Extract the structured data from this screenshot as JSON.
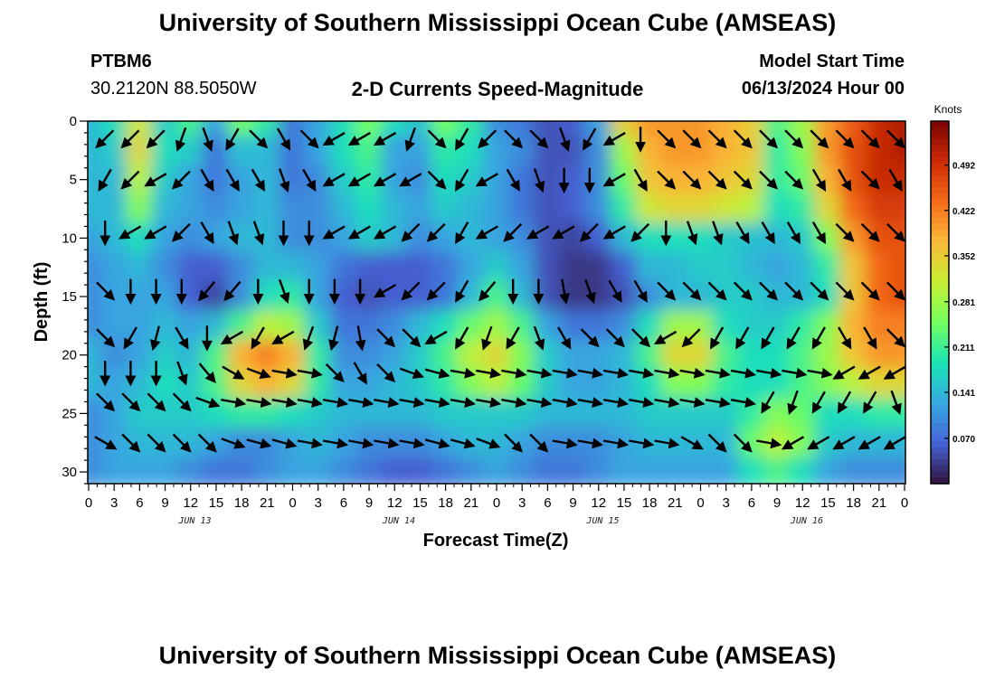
{
  "title": "University of Southern Mississippi Ocean Cube (AMSEAS)",
  "station": {
    "name": "PTBM6",
    "coords": "30.2120N  88.5050W"
  },
  "chart_title": "2-D Currents Speed-Magnitude",
  "model_start": {
    "label": "Model Start Time",
    "value": "06/13/2024 Hour 00"
  },
  "footer_title": "University of Southern Mississippi Ocean Cube (AMSEAS)",
  "chart_data": {
    "type": "heatmap",
    "title": "2-D Currents Speed-Magnitude",
    "xlabel": "Forecast Time(Z)",
    "ylabel": "Depth (ft)",
    "x_tick_labels": [
      "0",
      "3",
      "6",
      "9",
      "12",
      "15",
      "18",
      "21",
      "0",
      "3",
      "6",
      "9",
      "12",
      "15",
      "18",
      "21",
      "0",
      "3",
      "6",
      "9",
      "12",
      "15",
      "18",
      "21",
      "0",
      "3",
      "6",
      "9",
      "12",
      "15",
      "18",
      "21",
      "0"
    ],
    "day_labels": [
      "JUN 13",
      "JUN 14",
      "JUN 15",
      "JUN 16"
    ],
    "xlim_hours": [
      0,
      96
    ],
    "y_ticks": [
      0,
      5,
      10,
      15,
      20,
      25,
      30
    ],
    "ylim": [
      31,
      0
    ],
    "colorbar": {
      "unit": "Knots",
      "tick_labels": [
        "0.492",
        "0.422",
        "0.352",
        "0.281",
        "0.211",
        "0.141",
        "0.070"
      ],
      "tick_values": [
        0.492,
        0.422,
        0.352,
        0.281,
        0.211,
        0.141,
        0.07
      ],
      "range": [
        0.0,
        0.56
      ],
      "colormap": [
        "#30123b",
        "#4662d7",
        "#36a9e1",
        "#1ae4b6",
        "#72fe5e",
        "#c8ef34",
        "#faba39",
        "#f66b19",
        "#cb2a04",
        "#7a0403"
      ]
    },
    "depths": [
      0,
      2.5,
      5,
      7.5,
      10,
      12.5,
      15,
      17.5,
      20,
      22.5,
      25,
      27.5,
      30
    ],
    "hours": [
      0,
      3,
      6,
      9,
      12,
      15,
      18,
      21,
      24,
      27,
      30,
      33,
      36,
      39,
      42,
      45,
      48,
      51,
      54,
      57,
      60,
      63,
      66,
      69,
      72,
      75,
      78,
      81,
      84,
      87,
      90,
      93,
      96
    ],
    "speed": [
      [
        0.14,
        0.18,
        0.32,
        0.16,
        0.22,
        0.12,
        0.25,
        0.2,
        0.08,
        0.12,
        0.18,
        0.25,
        0.18,
        0.15,
        0.25,
        0.2,
        0.1,
        0.08,
        0.05,
        0.06,
        0.12,
        0.35,
        0.4,
        0.4,
        0.4,
        0.38,
        0.35,
        0.22,
        0.28,
        0.4,
        0.45,
        0.5,
        0.52
      ],
      [
        0.14,
        0.16,
        0.34,
        0.18,
        0.16,
        0.08,
        0.15,
        0.14,
        0.08,
        0.12,
        0.18,
        0.22,
        0.12,
        0.12,
        0.2,
        0.18,
        0.12,
        0.1,
        0.05,
        0.05,
        0.1,
        0.28,
        0.38,
        0.4,
        0.4,
        0.38,
        0.36,
        0.2,
        0.26,
        0.4,
        0.46,
        0.5,
        0.52
      ],
      [
        0.14,
        0.14,
        0.3,
        0.16,
        0.12,
        0.08,
        0.12,
        0.14,
        0.08,
        0.1,
        0.16,
        0.2,
        0.12,
        0.1,
        0.18,
        0.16,
        0.12,
        0.08,
        0.05,
        0.06,
        0.1,
        0.24,
        0.36,
        0.38,
        0.38,
        0.36,
        0.34,
        0.2,
        0.24,
        0.38,
        0.46,
        0.5,
        0.5
      ],
      [
        0.14,
        0.14,
        0.26,
        0.14,
        0.12,
        0.1,
        0.12,
        0.14,
        0.1,
        0.1,
        0.14,
        0.18,
        0.14,
        0.12,
        0.16,
        0.14,
        0.12,
        0.08,
        0.05,
        0.06,
        0.1,
        0.2,
        0.32,
        0.34,
        0.34,
        0.32,
        0.3,
        0.18,
        0.2,
        0.34,
        0.44,
        0.48,
        0.48
      ],
      [
        0.12,
        0.14,
        0.18,
        0.12,
        0.1,
        0.12,
        0.14,
        0.14,
        0.1,
        0.1,
        0.12,
        0.16,
        0.14,
        0.1,
        0.12,
        0.14,
        0.12,
        0.1,
        0.05,
        0.04,
        0.06,
        0.14,
        0.18,
        0.18,
        0.18,
        0.16,
        0.15,
        0.14,
        0.16,
        0.26,
        0.4,
        0.46,
        0.46
      ],
      [
        0.1,
        0.12,
        0.14,
        0.1,
        0.06,
        0.06,
        0.1,
        0.14,
        0.14,
        0.12,
        0.08,
        0.06,
        0.06,
        0.06,
        0.08,
        0.12,
        0.16,
        0.12,
        0.05,
        0.03,
        0.03,
        0.06,
        0.14,
        0.14,
        0.16,
        0.16,
        0.14,
        0.12,
        0.14,
        0.2,
        0.36,
        0.44,
        0.46
      ],
      [
        0.1,
        0.12,
        0.12,
        0.12,
        0.06,
        0.04,
        0.1,
        0.18,
        0.2,
        0.12,
        0.06,
        0.05,
        0.06,
        0.06,
        0.08,
        0.14,
        0.22,
        0.14,
        0.05,
        0.03,
        0.03,
        0.05,
        0.1,
        0.14,
        0.14,
        0.16,
        0.16,
        0.14,
        0.14,
        0.18,
        0.36,
        0.44,
        0.46
      ],
      [
        0.1,
        0.12,
        0.12,
        0.14,
        0.12,
        0.14,
        0.22,
        0.3,
        0.28,
        0.16,
        0.08,
        0.08,
        0.1,
        0.14,
        0.18,
        0.24,
        0.28,
        0.22,
        0.12,
        0.08,
        0.08,
        0.1,
        0.18,
        0.28,
        0.28,
        0.18,
        0.16,
        0.16,
        0.2,
        0.26,
        0.38,
        0.42,
        0.42
      ],
      [
        0.14,
        0.1,
        0.12,
        0.16,
        0.14,
        0.22,
        0.38,
        0.42,
        0.38,
        0.2,
        0.1,
        0.1,
        0.12,
        0.16,
        0.22,
        0.3,
        0.34,
        0.26,
        0.16,
        0.12,
        0.12,
        0.14,
        0.22,
        0.34,
        0.34,
        0.22,
        0.18,
        0.18,
        0.22,
        0.28,
        0.36,
        0.4,
        0.4
      ],
      [
        0.14,
        0.12,
        0.14,
        0.18,
        0.16,
        0.22,
        0.34,
        0.38,
        0.34,
        0.2,
        0.12,
        0.12,
        0.14,
        0.16,
        0.2,
        0.26,
        0.3,
        0.24,
        0.16,
        0.12,
        0.12,
        0.14,
        0.18,
        0.26,
        0.26,
        0.2,
        0.18,
        0.18,
        0.22,
        0.26,
        0.3,
        0.34,
        0.34
      ],
      [
        0.1,
        0.12,
        0.16,
        0.16,
        0.16,
        0.18,
        0.2,
        0.2,
        0.18,
        0.16,
        0.14,
        0.14,
        0.14,
        0.14,
        0.16,
        0.16,
        0.16,
        0.16,
        0.14,
        0.14,
        0.14,
        0.14,
        0.16,
        0.16,
        0.16,
        0.16,
        0.2,
        0.26,
        0.24,
        0.18,
        0.18,
        0.2,
        0.2
      ],
      [
        0.1,
        0.12,
        0.14,
        0.14,
        0.14,
        0.12,
        0.1,
        0.1,
        0.12,
        0.14,
        0.12,
        0.1,
        0.1,
        0.1,
        0.12,
        0.14,
        0.14,
        0.12,
        0.1,
        0.1,
        0.1,
        0.12,
        0.14,
        0.14,
        0.14,
        0.14,
        0.24,
        0.3,
        0.26,
        0.16,
        0.14,
        0.14,
        0.14
      ],
      [
        0.1,
        0.12,
        0.12,
        0.12,
        0.1,
        0.08,
        0.08,
        0.1,
        0.12,
        0.12,
        0.1,
        0.08,
        0.06,
        0.06,
        0.08,
        0.1,
        0.12,
        0.1,
        0.08,
        0.08,
        0.1,
        0.12,
        0.12,
        0.12,
        0.12,
        0.12,
        0.18,
        0.22,
        0.18,
        0.12,
        0.1,
        0.1,
        0.1
      ]
    ],
    "arrow_depths": [
      1.5,
      5,
      9.5,
      14.5,
      18.5,
      21.5,
      24,
      27.5
    ],
    "arrow_hours": [
      3,
      6,
      9,
      12,
      15,
      18,
      21,
      24,
      27,
      30,
      33,
      36,
      39,
      42,
      45,
      48,
      51,
      54,
      57,
      60,
      63,
      66,
      69,
      72,
      75,
      78,
      81,
      84,
      87,
      90,
      93,
      96
    ],
    "arrow_dir_deg": [
      [
        315,
        315,
        315,
        340,
        20,
        330,
        45,
        30,
        45,
        300,
        300,
        300,
        340,
        45,
        330,
        315,
        45,
        45,
        20,
        330,
        300,
        0,
        45,
        45,
        45,
        45,
        45,
        45,
        45,
        45,
        45,
        45
      ],
      [
        330,
        315,
        300,
        315,
        30,
        30,
        30,
        20,
        30,
        300,
        300,
        300,
        300,
        45,
        330,
        300,
        30,
        20,
        0,
        0,
        300,
        30,
        45,
        45,
        45,
        45,
        45,
        45,
        30,
        30,
        45,
        30
      ],
      [
        0,
        300,
        300,
        315,
        30,
        20,
        20,
        0,
        0,
        300,
        300,
        300,
        315,
        315,
        330,
        300,
        315,
        300,
        300,
        315,
        300,
        315,
        0,
        20,
        20,
        30,
        30,
        30,
        30,
        45,
        45,
        45
      ],
      [
        45,
        0,
        0,
        0,
        320,
        320,
        0,
        20,
        0,
        0,
        0,
        300,
        315,
        315,
        330,
        320,
        0,
        0,
        10,
        20,
        30,
        30,
        45,
        45,
        45,
        45,
        45,
        45,
        45,
        45,
        45,
        45
      ],
      [
        45,
        330,
        345,
        30,
        0,
        300,
        330,
        300,
        340,
        345,
        10,
        45,
        45,
        300,
        330,
        340,
        330,
        20,
        30,
        45,
        45,
        45,
        300,
        315,
        330,
        330,
        330,
        330,
        330,
        30,
        30,
        45
      ],
      [
        0,
        0,
        0,
        20,
        40,
        60,
        70,
        80,
        80,
        45,
        30,
        45,
        70,
        75,
        80,
        80,
        80,
        80,
        80,
        80,
        80,
        80,
        80,
        80,
        80,
        80,
        80,
        80,
        80,
        300,
        300,
        300
      ],
      [
        45,
        45,
        45,
        45,
        70,
        80,
        80,
        80,
        80,
        80,
        80,
        80,
        80,
        80,
        80,
        80,
        80,
        80,
        80,
        80,
        80,
        80,
        80,
        80,
        80,
        80,
        330,
        340,
        330,
        330,
        330,
        20
      ],
      [
        60,
        45,
        45,
        45,
        45,
        70,
        75,
        75,
        80,
        80,
        80,
        80,
        80,
        75,
        75,
        70,
        45,
        45,
        80,
        80,
        80,
        80,
        80,
        60,
        45,
        45,
        80,
        300,
        300,
        300,
        300,
        300
      ]
    ]
  }
}
